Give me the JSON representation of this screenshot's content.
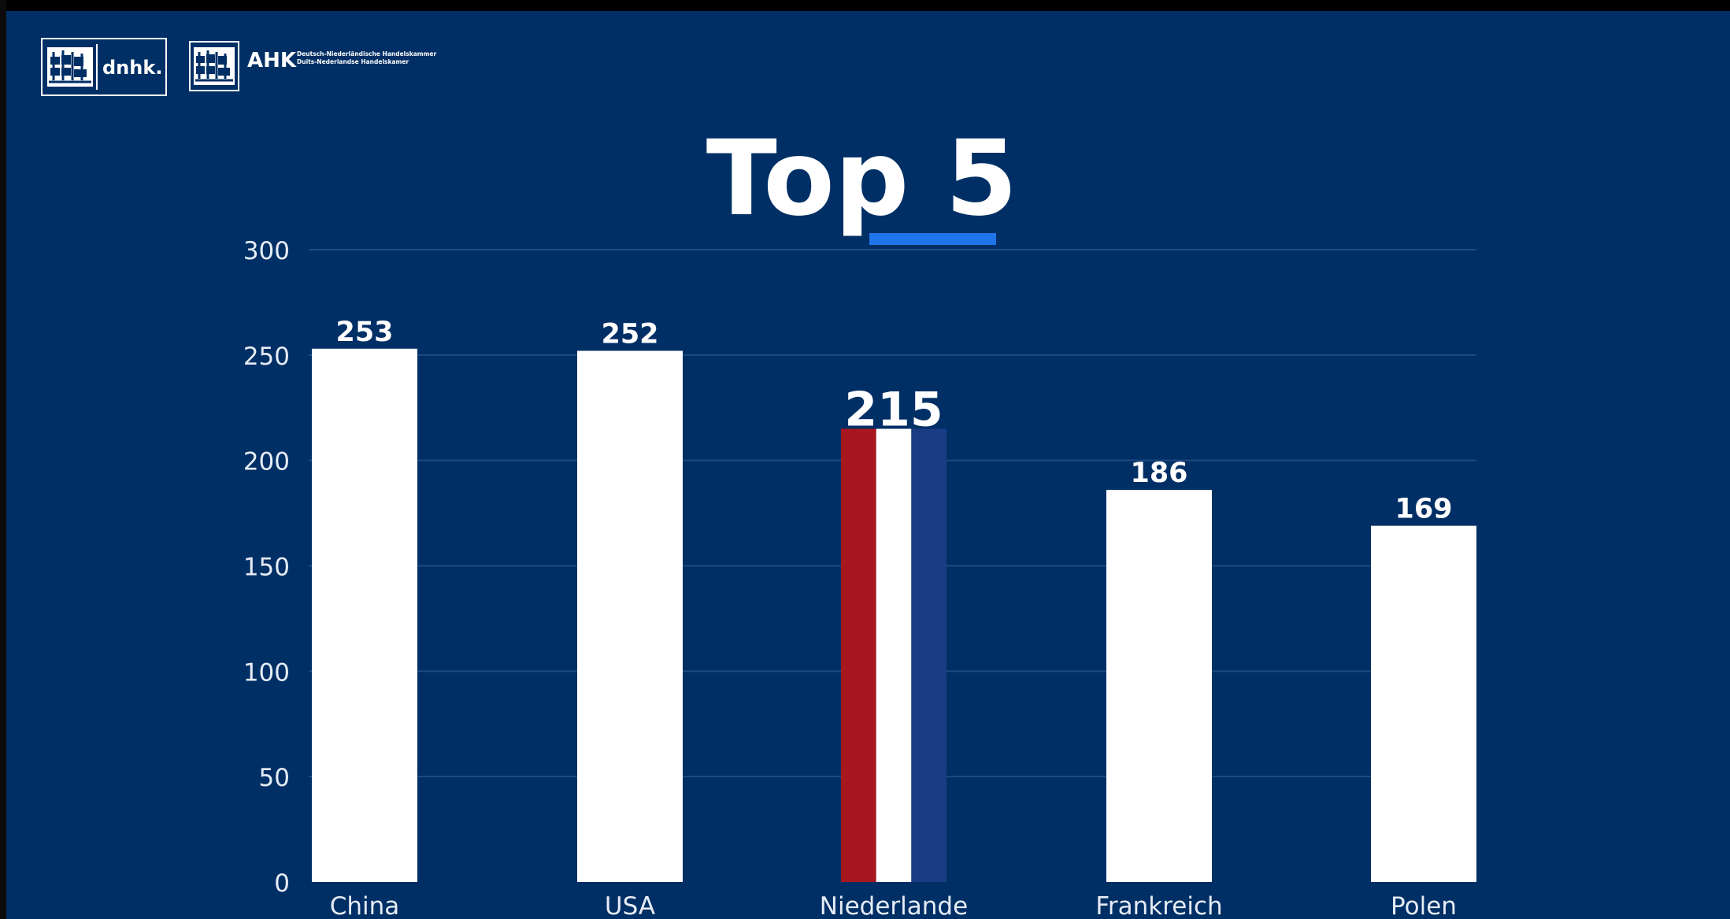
{
  "header": {
    "logo_dnhk_text": "dnhk.",
    "logo_ahk_text": "AHK",
    "ahk_line1": "Deutsch-Niederländische Handelskammer",
    "ahk_line2": "Duits-Nederlandse Handelskamer"
  },
  "colors": {
    "background": "#002f65",
    "bar": "#ffffff",
    "underline_accent": "#1f74ea",
    "flag_red": "#a8161f",
    "flag_white": "#ffffff",
    "flag_blue": "#1a3c85",
    "gridline": "#1f4a80",
    "axis_text": "#e6ecf5"
  },
  "chart_data": {
    "type": "bar",
    "title": "Top 5",
    "categories": [
      "China",
      "USA",
      "Niederlande",
      "Frankreich",
      "Polen"
    ],
    "values": [
      253,
      252,
      215,
      186,
      169
    ],
    "data_labels": [
      "253",
      "252",
      "215",
      "186",
      "169"
    ],
    "highlight_category": "Niederlande",
    "xlabel": "",
    "ylabel": "",
    "ylim": [
      0,
      300
    ],
    "yticks": [
      0,
      50,
      100,
      150,
      200,
      250,
      300
    ],
    "grid": true,
    "legend": "none"
  }
}
